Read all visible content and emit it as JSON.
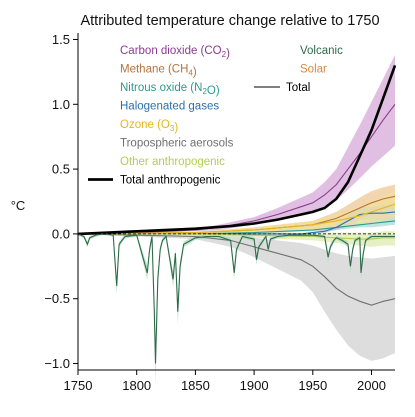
{
  "chart_data": {
    "type": "line",
    "title": "Attributed temperature change relative to 1750",
    "xlabel": "",
    "ylabel": "°C",
    "xlim": [
      1750,
      2020
    ],
    "ylim": [
      -1.05,
      1.55
    ],
    "xticks": [
      1750,
      1800,
      1850,
      1900,
      1950,
      2000
    ],
    "yticks": [
      {
        "v": 1.5,
        "label": "1.5"
      },
      {
        "v": 1.0,
        "label": "1.0"
      },
      {
        "v": 0.5,
        "label": "0.5"
      },
      {
        "v": 0.0,
        "label": "0.0"
      },
      {
        "v": -0.5,
        "label": "−0.5"
      },
      {
        "v": -1.0,
        "label": "−1.0"
      }
    ],
    "grid": false,
    "legend_left_position": "upper-left",
    "legend_right_position": "upper-right",
    "series": [
      {
        "key": "co2",
        "name_parts": [
          [
            "Carbon dioxide (CO",
            false
          ],
          [
            "2",
            true
          ],
          [
            ")",
            false
          ]
        ],
        "color": "#8a3c8f",
        "band": "#d4a4d6",
        "x": [
          1750,
          1800,
          1850,
          1870,
          1900,
          1920,
          1940,
          1950,
          1960,
          1970,
          1980,
          1990,
          2000,
          2010,
          2020
        ],
        "y": [
          0,
          0.01,
          0.03,
          0.05,
          0.1,
          0.15,
          0.21,
          0.24,
          0.3,
          0.38,
          0.5,
          0.62,
          0.75,
          0.88,
          1.0
        ],
        "lo": [
          0,
          0.005,
          0.02,
          0.03,
          0.07,
          0.1,
          0.15,
          0.17,
          0.2,
          0.26,
          0.34,
          0.43,
          0.52,
          0.6,
          0.68
        ],
        "hi": [
          0,
          0.015,
          0.04,
          0.07,
          0.13,
          0.2,
          0.28,
          0.32,
          0.4,
          0.5,
          0.67,
          0.84,
          1.02,
          1.2,
          1.38
        ]
      },
      {
        "key": "ch4",
        "name_parts": [
          [
            "Methane (CH",
            false
          ],
          [
            "4",
            true
          ],
          [
            ")",
            false
          ]
        ],
        "color": "#b5733a",
        "band": "#ecc58f",
        "x": [
          1750,
          1850,
          1900,
          1950,
          1970,
          1990,
          2000,
          2010,
          2020
        ],
        "y": [
          0,
          0.01,
          0.03,
          0.07,
          0.12,
          0.2,
          0.24,
          0.27,
          0.29
        ],
        "lo": [
          0,
          0.005,
          0.02,
          0.04,
          0.07,
          0.12,
          0.15,
          0.17,
          0.18
        ],
        "hi": [
          0,
          0.015,
          0.05,
          0.1,
          0.17,
          0.28,
          0.33,
          0.36,
          0.38
        ]
      },
      {
        "key": "n2o",
        "name_parts": [
          [
            "Nitrous oxide (N",
            false
          ],
          [
            "2",
            true
          ],
          [
            "O)",
            false
          ]
        ],
        "color": "#2d9a8f",
        "band": "#a6d9d3",
        "x": [
          1750,
          1850,
          1900,
          1950,
          1970,
          1990,
          2000,
          2010,
          2020
        ],
        "y": [
          0,
          0.0,
          0.01,
          0.03,
          0.05,
          0.07,
          0.08,
          0.09,
          0.1
        ],
        "lo": [
          0,
          0,
          0.005,
          0.02,
          0.03,
          0.05,
          0.05,
          0.06,
          0.07
        ],
        "hi": [
          0,
          0.005,
          0.02,
          0.04,
          0.07,
          0.09,
          0.11,
          0.12,
          0.13
        ]
      },
      {
        "key": "halo",
        "name_parts": [
          [
            "Halogenated gases",
            false
          ]
        ],
        "color": "#2a6fb0",
        "band": "#a9c8e8",
        "x": [
          1750,
          1940,
          1950,
          1960,
          1970,
          1980,
          1990,
          2000,
          2010,
          2020
        ],
        "y": [
          0,
          0,
          0.01,
          0.02,
          0.05,
          0.1,
          0.15,
          0.16,
          0.16,
          0.17
        ],
        "lo": [
          0,
          0,
          0.005,
          0.01,
          0.03,
          0.06,
          0.1,
          0.11,
          0.11,
          0.12
        ],
        "hi": [
          0,
          0,
          0.015,
          0.03,
          0.07,
          0.14,
          0.2,
          0.21,
          0.22,
          0.22
        ]
      },
      {
        "key": "o3",
        "name_parts": [
          [
            "Ozone (O",
            false
          ],
          [
            "3",
            true
          ],
          [
            ")",
            false
          ]
        ],
        "color": "#e2b81c",
        "band": "#f2df97",
        "x": [
          1750,
          1850,
          1900,
          1950,
          1970,
          1990,
          2000,
          2010,
          2020
        ],
        "y": [
          0,
          0.01,
          0.03,
          0.07,
          0.1,
          0.14,
          0.17,
          0.2,
          0.23
        ],
        "lo": [
          0,
          0.005,
          0.01,
          0.03,
          0.05,
          0.07,
          0.09,
          0.1,
          0.12
        ],
        "hi": [
          0,
          0.015,
          0.05,
          0.1,
          0.15,
          0.21,
          0.25,
          0.29,
          0.33
        ]
      },
      {
        "key": "aer",
        "name_parts": [
          [
            "Tropospheric aerosols",
            false
          ]
        ],
        "color": "#707070",
        "band": "#cfcfcf",
        "x": [
          1750,
          1850,
          1880,
          1900,
          1920,
          1940,
          1950,
          1960,
          1970,
          1980,
          1990,
          2000,
          2010,
          2020
        ],
        "y": [
          0,
          -0.02,
          -0.05,
          -0.1,
          -0.15,
          -0.2,
          -0.25,
          -0.33,
          -0.42,
          -0.48,
          -0.52,
          -0.55,
          -0.52,
          -0.5
        ],
        "lo": [
          0,
          -0.04,
          -0.1,
          -0.18,
          -0.27,
          -0.36,
          -0.45,
          -0.6,
          -0.74,
          -0.86,
          -0.94,
          -0.98,
          -0.96,
          -0.92
        ],
        "hi": [
          0,
          -0.005,
          -0.01,
          -0.03,
          -0.05,
          -0.07,
          -0.09,
          -0.12,
          -0.15,
          -0.17,
          -0.18,
          -0.19,
          -0.18,
          -0.17
        ]
      },
      {
        "key": "oth",
        "name_parts": [
          [
            "Other anthropogenic",
            false
          ]
        ],
        "color": "#b4cc57",
        "band": "#dde9a9",
        "x": [
          1750,
          1850,
          1900,
          1950,
          1970,
          1990,
          2000,
          2010,
          2020
        ],
        "y": [
          0,
          0,
          -0.01,
          -0.02,
          -0.03,
          -0.04,
          -0.04,
          -0.03,
          -0.03
        ],
        "lo": [
          0,
          -0.01,
          -0.03,
          -0.05,
          -0.07,
          -0.09,
          -0.1,
          -0.09,
          -0.09
        ],
        "hi": [
          0,
          0.005,
          0.01,
          0.01,
          0.01,
          0.01,
          0.01,
          0.02,
          0.02
        ]
      },
      {
        "key": "anth",
        "name_parts": [
          [
            "Total anthropogenic",
            false
          ]
        ],
        "color": "#000000",
        "bold": true,
        "x": [
          1750,
          1800,
          1850,
          1880,
          1900,
          1920,
          1940,
          1950,
          1960,
          1970,
          1980,
          1990,
          2000,
          2010,
          2020
        ],
        "y": [
          0,
          0.02,
          0.04,
          0.06,
          0.08,
          0.11,
          0.15,
          0.17,
          0.2,
          0.27,
          0.4,
          0.6,
          0.8,
          1.05,
          1.3
        ]
      }
    ],
    "series_right": [
      {
        "key": "volc",
        "name": "Volcanic",
        "color": "#2e6b4a",
        "band": "#a9d8b8",
        "x": [
          1750,
          1755,
          1758,
          1760,
          1765,
          1770,
          1775,
          1780,
          1783,
          1785,
          1790,
          1800,
          1809,
          1811,
          1813,
          1815,
          1816,
          1818,
          1820,
          1822,
          1825,
          1831,
          1833,
          1835,
          1837,
          1840,
          1850,
          1860,
          1870,
          1880,
          1883,
          1885,
          1888,
          1890,
          1900,
          1902,
          1904,
          1910,
          1912,
          1914,
          1920,
          1930,
          1940,
          1950,
          1960,
          1963,
          1965,
          1968,
          1970,
          1975,
          1980,
          1982,
          1984,
          1986,
          1990,
          1991,
          1993,
          1995,
          2000,
          2010,
          2020
        ],
        "y": [
          0,
          -0.02,
          -0.08,
          -0.03,
          -0.01,
          0,
          0,
          -0.01,
          -0.4,
          -0.08,
          -0.02,
          -0.01,
          -0.3,
          -0.12,
          -0.02,
          -0.6,
          -1.0,
          -0.35,
          -0.12,
          -0.05,
          -0.02,
          -0.35,
          -0.15,
          -0.6,
          -0.25,
          -0.08,
          -0.03,
          -0.02,
          -0.02,
          -0.05,
          -0.3,
          -0.12,
          -0.06,
          -0.02,
          -0.04,
          -0.2,
          -0.1,
          -0.02,
          -0.12,
          -0.04,
          -0.02,
          -0.01,
          -0.01,
          -0.01,
          -0.02,
          -0.18,
          -0.1,
          -0.05,
          -0.03,
          -0.05,
          -0.08,
          -0.25,
          -0.12,
          -0.05,
          -0.03,
          -0.3,
          -0.15,
          -0.05,
          -0.02,
          -0.02,
          -0.02
        ]
      },
      {
        "key": "solar",
        "name": "Solar",
        "color": "#d98b3a"
      },
      {
        "key": "total",
        "name": "Total",
        "color": "#000000"
      }
    ]
  }
}
